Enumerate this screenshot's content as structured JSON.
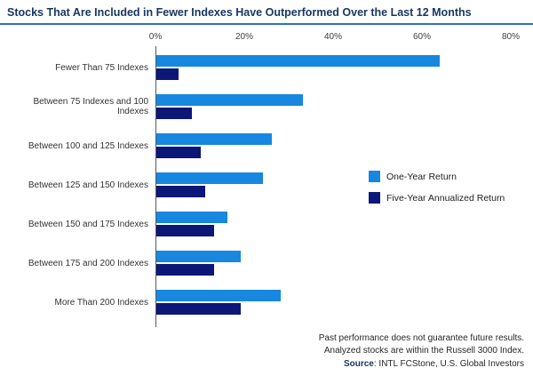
{
  "title": "Stocks That Are Included in Fewer Indexes Have Outperformed Over the Last 12 Months",
  "colors": {
    "title_navy": "#17365D",
    "rule_blue": "#2E75B6",
    "one_year_blue": "#1787E0",
    "five_year_navy": "#0C1778",
    "axis_gray": "#595959"
  },
  "chart_data": {
    "type": "bar",
    "orientation": "horizontal",
    "title": "Stocks That Are Included in Fewer Indexes Have Outperformed Over the Last 12 Months",
    "categories": [
      "Fewer Than 75 Indexes",
      "Between 75 Indexes and 100 Indexes",
      "Between 100 and 125 Indexes",
      "Between 125 and 150 Indexes",
      "Between 150 and 175 Indexes",
      "Between 175 and 200 Indexes",
      "More Than 200 Indexes"
    ],
    "series": [
      {
        "name": "One-Year Return",
        "color": "#1787E0",
        "values": [
          64,
          33,
          26,
          24,
          16,
          19,
          28
        ]
      },
      {
        "name": "Five-Year Annualized Return",
        "color": "#0C1778",
        "values": [
          5,
          8,
          10,
          11,
          13,
          13,
          19
        ]
      }
    ],
    "x_axis": {
      "ticks": [
        "0%",
        "20%",
        "40%",
        "60%",
        "80%"
      ],
      "tick_values": [
        0,
        20,
        40,
        60,
        80
      ],
      "max": 80,
      "unit": "%"
    },
    "grid": false,
    "legend_position": "middle-right"
  },
  "footer": {
    "line1": "Past performance does not guarantee future results.",
    "line2": "Analyzed stocks are within the Russell 3000 Index.",
    "source_label": "Source",
    "source_text": ": INTL FCStone, U.S. Global Investors"
  }
}
